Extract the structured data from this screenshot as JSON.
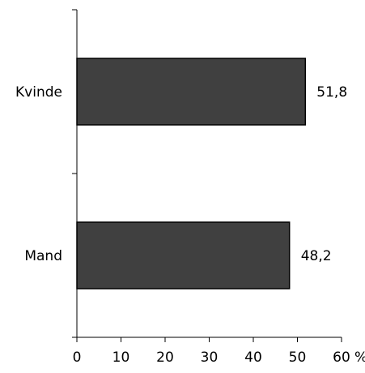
{
  "chart_data": {
    "type": "bar",
    "orientation": "horizontal",
    "categories": [
      "Kvinde",
      "Mand"
    ],
    "values": [
      51.8,
      48.2
    ],
    "data_labels": [
      "51,8",
      "48,2"
    ],
    "x_ticks": [
      0,
      10,
      20,
      30,
      40,
      50,
      60
    ],
    "x_tick_labels": [
      "0",
      "10",
      "20",
      "30",
      "40",
      "50",
      "60"
    ],
    "xlim": [
      0,
      60
    ],
    "unit_suffix": "%",
    "grid": false,
    "legend": "none",
    "bar_color": "#404040",
    "bar_edge_color": "#000000"
  }
}
